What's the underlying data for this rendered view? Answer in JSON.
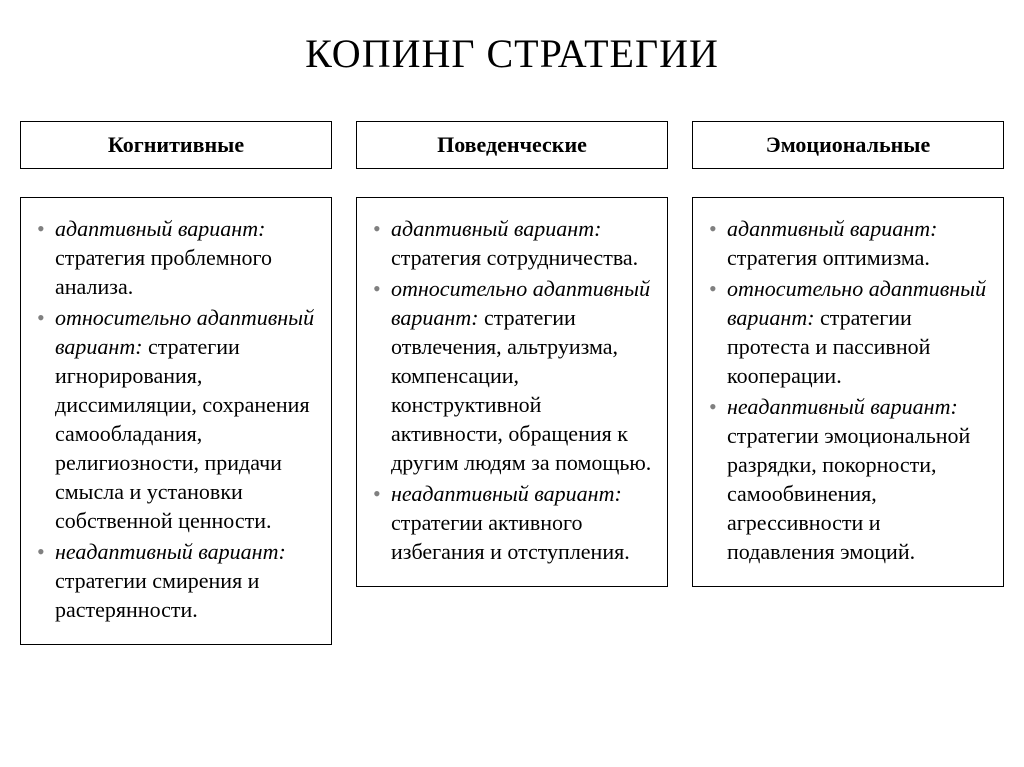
{
  "title": "КОПИНГ СТРАТЕГИИ",
  "columns": [
    {
      "header": "Когнитивные",
      "items": [
        {
          "label": "адаптивный вариант:",
          "text": " стратегия проблемного анализа."
        },
        {
          "label": "относительно адаптивный вариант:",
          "text": " стратегии игнорирования, диссимиляции, сохранения самообладания, религиозности, придачи смысла и установки собственной ценности."
        },
        {
          "label": "неадаптивный вариант:",
          "text": " стратегии смирения и растерянности."
        }
      ]
    },
    {
      "header": "Поведенческие",
      "items": [
        {
          "label": "адаптивный вариант:",
          "text": " стратегия сотрудничества."
        },
        {
          "label": "относительно адаптивный вариант:",
          "text": " стратегии отвлечения, альтруизма, компенсации, конструктивной активности, обращения к другим людям за помощью."
        },
        {
          "label": "неадаптивный вариант:",
          "text": " стратегии активного избегания и отступления."
        }
      ]
    },
    {
      "header": "Эмоциональные",
      "items": [
        {
          "label": "адаптивный вариант:",
          "text": " стратегия оптимизма."
        },
        {
          "label": "относительно адаптивный вариант:",
          "text": " стратегии протеста и пассивной кооперации."
        },
        {
          "label": "неадаптивный вариант:",
          "text": " стратегии эмоциональной разрядки, покорности, самообвинения, агрессивности и подавления эмоций."
        }
      ]
    }
  ],
  "style": {
    "background_color": "#ffffff",
    "text_color": "#000000",
    "bullet_color": "#808080",
    "border_color": "#000000",
    "title_fontsize": 40,
    "header_fontsize": 22,
    "body_fontsize": 22,
    "font_family": "Times New Roman",
    "column_gap": 24,
    "header_body_gap": 14
  }
}
